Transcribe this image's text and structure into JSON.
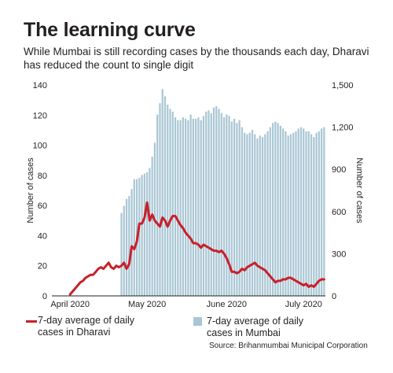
{
  "header": {
    "title": "The learning curve",
    "subtitle": "While Mumbai is still recording cases by the thousands each day, Dharavi has reduced the count to single digit"
  },
  "legend": {
    "dharavi": "7-day average of daily cases in Dharavi",
    "mumbai": "7-day average of daily cases in Mumbai"
  },
  "source": "Source: Brihanmumbai Municipal Corporation",
  "colors": {
    "dharavi_line": "#c8202a",
    "mumbai_bars": "#a9c6d4",
    "text": "#231f20"
  },
  "chart_data": {
    "type": "bar",
    "left_axis": {
      "label": "Number of cases",
      "min": 0,
      "max": 140,
      "ticks": [
        0,
        20,
        40,
        60,
        80,
        100,
        120,
        140
      ]
    },
    "right_axis": {
      "label": "Number of cases",
      "min": 0,
      "max": 1500,
      "ticks": [
        0,
        300,
        600,
        900,
        1200,
        1500
      ],
      "tick_labels": [
        "0",
        "300",
        "600",
        "900",
        "1,200",
        "1,500"
      ]
    },
    "x_ticks": [
      "April 2020",
      "May 2020",
      "June 2020",
      "July 2020"
    ],
    "x_tick_days": [
      6,
      36,
      67,
      97
    ],
    "grid": false,
    "series": [
      {
        "name": "7-day average of daily cases in Mumbai",
        "type": "bar",
        "axis": "right",
        "values": [
          590,
          640,
          690,
          710,
          760,
          830,
          830,
          840,
          860,
          870,
          880,
          910,
          990,
          1090,
          1290,
          1370,
          1470,
          1420,
          1360,
          1330,
          1310,
          1270,
          1250,
          1250,
          1270,
          1260,
          1250,
          1290,
          1260,
          1260,
          1270,
          1250,
          1280,
          1310,
          1320,
          1300,
          1340,
          1350,
          1330,
          1300,
          1270,
          1290,
          1280,
          1240,
          1260,
          1230,
          1250,
          1200,
          1160,
          1150,
          1160,
          1180,
          1150,
          1120,
          1140,
          1130,
          1150,
          1170,
          1200,
          1230,
          1240,
          1230,
          1210,
          1190,
          1170,
          1140,
          1150,
          1160,
          1170,
          1190,
          1200,
          1190,
          1170,
          1170,
          1150,
          1130,
          1160,
          1170,
          1190,
          1200
        ]
      },
      {
        "name": "7-day average of daily cases in Dharavi",
        "type": "line",
        "axis": "left",
        "values": [
          null,
          null,
          null,
          null,
          null,
          null,
          1,
          3,
          5,
          7,
          9,
          10,
          12,
          13,
          14,
          14,
          16,
          18,
          19,
          18,
          20,
          22,
          19,
          18,
          20,
          19,
          20,
          22,
          18,
          21,
          33,
          31,
          36,
          48,
          48,
          52,
          62,
          50,
          54,
          50,
          48,
          46,
          52,
          50,
          46,
          50,
          53,
          53,
          50,
          47,
          45,
          42,
          40,
          38,
          35,
          35,
          34,
          32,
          34,
          33,
          32,
          31,
          30,
          30,
          29,
          30,
          28,
          25,
          21,
          16,
          16,
          15,
          16,
          18,
          17,
          19,
          20,
          21,
          22,
          20,
          19,
          18,
          17,
          15,
          13,
          11,
          9,
          10,
          10,
          11,
          11,
          12,
          12,
          11,
          10,
          9,
          8,
          7,
          8,
          6,
          7,
          6,
          8,
          10,
          11,
          11
        ]
      }
    ]
  }
}
